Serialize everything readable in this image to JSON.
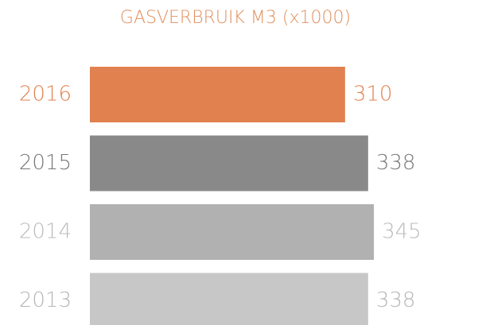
{
  "chart_data": {
    "type": "hbar",
    "title": "GASVERBRUIK M3 (x1000)",
    "categories": [
      "2016",
      "2015",
      "2014",
      "2013"
    ],
    "values": [
      310,
      338,
      345,
      338
    ],
    "colors": [
      "#e0814f",
      "#898989",
      "#b1b1b1",
      "#c7c7c7"
    ],
    "label_colors": [
      "#e0814f",
      "#777777",
      "#bbbbbb",
      "#b5b5b5"
    ],
    "title_color": "#e0905f"
  }
}
